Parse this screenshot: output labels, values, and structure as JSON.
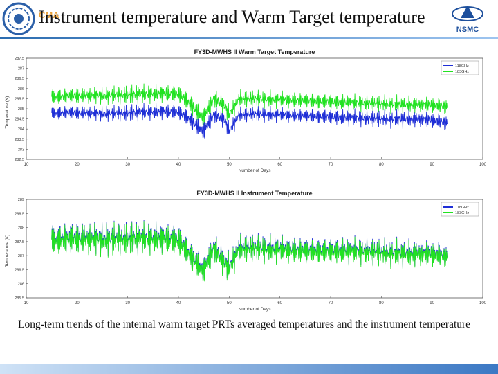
{
  "slide": {
    "title": "Instrument temperature and Warm Target temperature",
    "logo_left_text": "CMA",
    "logo_right_text": "NSMC",
    "caption": "Long-term trends of the internal warm target PRTs averaged temperatures and the instrument temperature"
  },
  "colors": {
    "blue_series": "#1f2fd6",
    "green_series": "#22e222",
    "title_rule": "#2b6cb0"
  },
  "chart_data": [
    {
      "type": "line",
      "title": "FY3D-MWHS II Warm Target Temperature",
      "xlabel": "Number of Days",
      "ylabel": "Temperature (K)",
      "xlim": [
        10,
        100
      ],
      "ylim": [
        282.5,
        287.5
      ],
      "x_ticks": [
        10,
        20,
        30,
        40,
        50,
        60,
        70,
        80,
        90,
        100
      ],
      "y_ticks": [
        282.5,
        283,
        283.5,
        284,
        284.5,
        285,
        285.5,
        286,
        286.5,
        287,
        287.5
      ],
      "x_tick_labels": [
        "10",
        "20",
        "30",
        "40",
        "50",
        "60",
        "70",
        "80",
        "90",
        "100"
      ],
      "y_tick_labels": [
        "282.5",
        "283",
        "283.5",
        "284",
        "284.5",
        "285",
        "285.5",
        "286",
        "286.5",
        "287",
        "287.5"
      ],
      "legend_position": "top-right",
      "grid": false,
      "series": [
        {
          "name": "118GHz",
          "color": "#1f2fd6",
          "x": [
            15,
            20,
            25,
            30,
            35,
            40,
            42,
            45,
            47,
            49,
            50,
            52,
            55,
            60,
            65,
            70,
            75,
            80,
            85,
            90,
            93
          ],
          "y": [
            284.8,
            284.8,
            284.75,
            284.8,
            284.85,
            284.85,
            284.5,
            283.9,
            284.7,
            284.5,
            283.9,
            284.7,
            284.75,
            284.7,
            284.65,
            284.6,
            284.55,
            284.5,
            284.5,
            284.45,
            284.3
          ],
          "amplitude": [
            0.35,
            0.35,
            0.35,
            0.4,
            0.4,
            0.4,
            0.45,
            0.5,
            0.4,
            0.45,
            0.4,
            0.35,
            0.35,
            0.35,
            0.35,
            0.4,
            0.4,
            0.4,
            0.4,
            0.4,
            0.4
          ]
        },
        {
          "name": "183GHz",
          "color": "#22e222",
          "x": [
            15,
            20,
            25,
            30,
            35,
            40,
            42,
            45,
            47,
            49,
            50,
            52,
            55,
            60,
            65,
            70,
            75,
            80,
            85,
            90,
            93
          ],
          "y": [
            285.6,
            285.65,
            285.65,
            285.7,
            285.75,
            285.75,
            285.3,
            284.55,
            285.5,
            285.2,
            284.7,
            285.5,
            285.5,
            285.45,
            285.4,
            285.35,
            285.3,
            285.25,
            285.2,
            285.2,
            285.1
          ],
          "amplitude": [
            0.4,
            0.4,
            0.4,
            0.45,
            0.45,
            0.45,
            0.5,
            0.55,
            0.45,
            0.5,
            0.45,
            0.4,
            0.4,
            0.4,
            0.4,
            0.4,
            0.4,
            0.4,
            0.4,
            0.4,
            0.4
          ]
        }
      ]
    },
    {
      "type": "line",
      "title": "FY3D-MWHS II Instrument Temperature",
      "xlabel": "Number of Days",
      "ylabel": "Temperature (K)",
      "xlim": [
        10,
        100
      ],
      "ylim": [
        285.5,
        289
      ],
      "x_ticks": [
        10,
        20,
        30,
        40,
        50,
        60,
        70,
        80,
        90,
        100
      ],
      "y_ticks": [
        285.5,
        286,
        286.5,
        287,
        287.5,
        288,
        288.5,
        289
      ],
      "x_tick_labels": [
        "10",
        "20",
        "30",
        "40",
        "50",
        "60",
        "70",
        "80",
        "90",
        "100"
      ],
      "y_tick_labels": [
        "285.5",
        "286",
        "286.5",
        "287",
        "287.5",
        "288",
        "288.5",
        "289"
      ],
      "legend_position": "top-right",
      "grid": false,
      "series": [
        {
          "name": "118GHz",
          "color": "#1f2fd6",
          "x": [
            15,
            20,
            25,
            30,
            35,
            40,
            42,
            45,
            47,
            49,
            50,
            52,
            55,
            60,
            65,
            70,
            75,
            80,
            85,
            90,
            93
          ],
          "y": [
            287.6,
            287.65,
            287.6,
            287.65,
            287.65,
            287.6,
            287.1,
            286.5,
            287.3,
            286.8,
            286.6,
            287.3,
            287.3,
            287.25,
            287.2,
            287.2,
            287.2,
            287.15,
            287.1,
            287.1,
            287.0
          ],
          "amplitude": [
            0.55,
            0.55,
            0.55,
            0.55,
            0.55,
            0.55,
            0.5,
            0.5,
            0.5,
            0.5,
            0.5,
            0.45,
            0.45,
            0.45,
            0.45,
            0.45,
            0.45,
            0.45,
            0.45,
            0.45,
            0.4
          ]
        },
        {
          "name": "183GHz",
          "color": "#22e222",
          "x": [
            15,
            20,
            25,
            30,
            35,
            40,
            42,
            45,
            47,
            49,
            50,
            52,
            55,
            60,
            65,
            70,
            75,
            80,
            85,
            90,
            93
          ],
          "y": [
            287.55,
            287.6,
            287.55,
            287.6,
            287.6,
            287.55,
            287.05,
            286.45,
            287.25,
            286.75,
            286.55,
            287.25,
            287.25,
            287.2,
            287.15,
            287.15,
            287.15,
            287.1,
            287.05,
            287.05,
            286.95
          ],
          "amplitude": [
            0.55,
            0.55,
            0.55,
            0.55,
            0.55,
            0.55,
            0.5,
            0.5,
            0.5,
            0.5,
            0.5,
            0.45,
            0.45,
            0.45,
            0.45,
            0.45,
            0.45,
            0.45,
            0.45,
            0.45,
            0.4
          ]
        }
      ]
    }
  ]
}
